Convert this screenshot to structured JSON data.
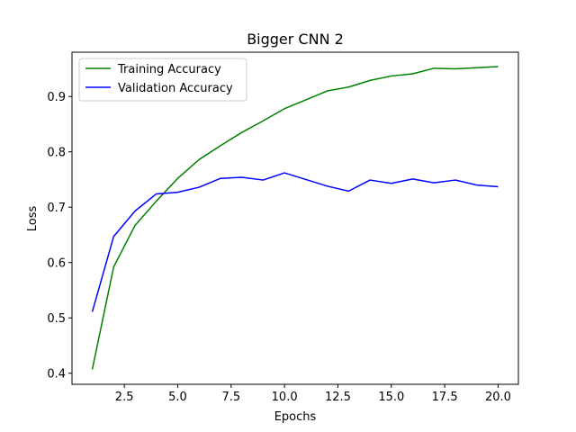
{
  "chart_data": {
    "type": "line",
    "title": "Bigger CNN 2",
    "xlabel": "Epochs",
    "ylabel": "Loss",
    "xlim": [
      0.05,
      20.95
    ],
    "ylim": [
      0.38,
      0.98
    ],
    "xticks": [
      2.5,
      5.0,
      7.5,
      10.0,
      12.5,
      15.0,
      17.5,
      20.0
    ],
    "xtick_labels": [
      "2.5",
      "5.0",
      "7.5",
      "10.0",
      "12.5",
      "15.0",
      "17.5",
      "20.0"
    ],
    "yticks": [
      0.4,
      0.5,
      0.6,
      0.7,
      0.8,
      0.9
    ],
    "ytick_labels": [
      "0.4",
      "0.5",
      "0.6",
      "0.7",
      "0.8",
      "0.9"
    ],
    "grid": false,
    "legend_position": "top-left",
    "x": [
      1,
      2,
      3,
      4,
      5,
      6,
      7,
      8,
      9,
      10,
      11,
      12,
      13,
      14,
      15,
      16,
      17,
      18,
      19,
      20
    ],
    "series": [
      {
        "name": "Training Accuracy",
        "color": "#008000",
        "values": [
          0.407,
          0.592,
          0.667,
          0.711,
          0.752,
          0.786,
          0.811,
          0.835,
          0.856,
          0.878,
          0.894,
          0.91,
          0.917,
          0.929,
          0.937,
          0.941,
          0.951,
          0.95,
          0.952,
          0.954
        ]
      },
      {
        "name": "Validation Accuracy",
        "color": "#0000ff",
        "values": [
          0.511,
          0.647,
          0.693,
          0.724,
          0.727,
          0.736,
          0.752,
          0.754,
          0.749,
          0.762,
          0.75,
          0.738,
          0.729,
          0.749,
          0.743,
          0.751,
          0.744,
          0.749,
          0.74,
          0.737
        ]
      }
    ]
  }
}
